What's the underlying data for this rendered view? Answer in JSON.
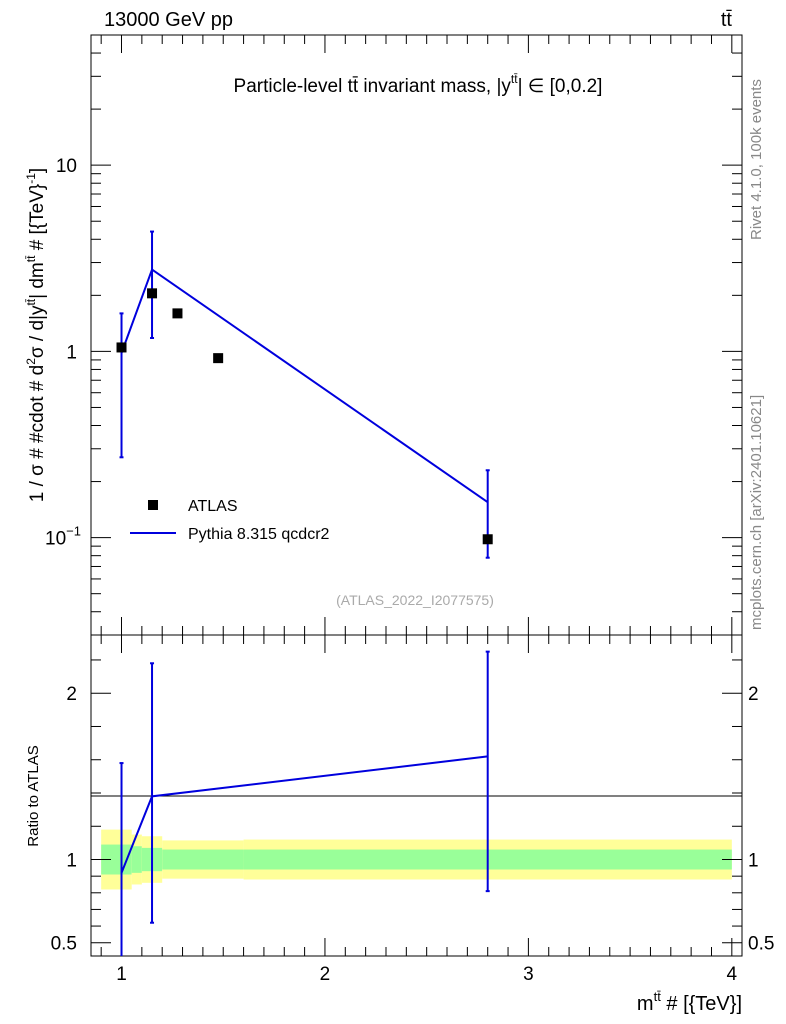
{
  "header": {
    "left": "13000 GeV pp",
    "right": "tt̄"
  },
  "side_labels": {
    "rivet": "Rivet 4.1.0,  100k events",
    "mcplots": "mcplots.cern.ch [arXiv:2401.10621]"
  },
  "chart_data": [
    {
      "type": "scatter",
      "panel": "main",
      "title": "Particle-level tt̄ invariant mass, |ytt̄| ∈ [0,0.2]",
      "title_parts": {
        "prefix": "Particle-level ",
        "tt": "tt̄",
        "middle": " invariant mass, |y",
        "sup": "tt̄",
        "suffix": "| ∈ [0,0.2]"
      },
      "watermark": "(ATLAS_2022_I2077575)",
      "ylabel": "1 / σ # #cdot # d²σ / d|y^{tt̄}| dm^{tt̄} # [{TeV}⁻¹]",
      "ylabel_parts": {
        "a": "1 / σ # #cdot # d",
        "a_sup": "2",
        "b": "σ / d|y",
        "b_sup": "tt̄",
        "c": "| dm",
        "c_sup": "tt̄",
        "d": " # [{TeV}",
        "d_sup": "-1",
        "e": "]"
      },
      "yscale": "log",
      "ylim": [
        0.03,
        50
      ],
      "xlim": [
        0.85,
        4.05
      ],
      "yticks": [
        {
          "value": 0.1,
          "label": "10",
          "sup": "−1"
        },
        {
          "value": 1,
          "label": "1",
          "sup": ""
        },
        {
          "value": 10,
          "label": "10",
          "sup": ""
        }
      ],
      "legend": {
        "placement": "bottom-left",
        "entries": [
          {
            "label": "ATLAS",
            "style": "marker",
            "color": "#000000"
          },
          {
            "label": "Pythia 8.315 qcdcr2",
            "style": "line",
            "color": "#0000dd"
          }
        ]
      },
      "series": [
        {
          "name": "ATLAS",
          "color": "#000000",
          "x": [
            1.0,
            1.15,
            1.275,
            1.475,
            2.8
          ],
          "y": [
            1.05,
            2.05,
            1.6,
            0.92,
            0.098
          ]
        },
        {
          "name": "Pythia 8.315 qcdcr2",
          "color": "#0000dd",
          "x": [
            1.0,
            1.15,
            2.8
          ],
          "y": [
            0.98,
            2.75,
            0.155
          ],
          "err_low": [
            0.27,
            1.18,
            0.078
          ],
          "err_high": [
            1.6,
            4.4,
            0.23
          ]
        }
      ]
    },
    {
      "type": "line",
      "panel": "ratio",
      "ylabel": "Ratio to ATLAS",
      "ylim": [
        0.42,
        2.35
      ],
      "xlim": [
        0.85,
        4.05
      ],
      "yticks": [
        {
          "value": 0.5,
          "label": "0.5"
        },
        {
          "value": 1,
          "label": "1"
        },
        {
          "value": 2,
          "label": "2"
        }
      ],
      "xticks": [
        {
          "value": 1,
          "label": "1"
        },
        {
          "value": 2,
          "label": "2"
        },
        {
          "value": 3,
          "label": "3"
        },
        {
          "value": 4,
          "label": "4"
        }
      ],
      "xlabel_parts": {
        "a": "m",
        "sup": "tt̄",
        "b": " # [{TeV}]"
      },
      "bands": {
        "yellow_color": "#ffff99",
        "green_color": "#99ff99",
        "bins": [
          {
            "x0": 0.9,
            "x1": 1.05,
            "y_lo": 0.82,
            "y_hi": 1.18,
            "g_lo": 0.91,
            "g_hi": 1.09
          },
          {
            "x0": 1.05,
            "x1": 1.1,
            "y_lo": 0.85,
            "y_hi": 1.15,
            "g_lo": 0.92,
            "g_hi": 1.08
          },
          {
            "x0": 1.1,
            "x1": 1.2,
            "y_lo": 0.86,
            "y_hi": 1.14,
            "g_lo": 0.93,
            "g_hi": 1.07
          },
          {
            "x0": 1.2,
            "x1": 1.6,
            "y_lo": 0.885,
            "y_hi": 1.115,
            "g_lo": 0.94,
            "g_hi": 1.06
          },
          {
            "x0": 1.6,
            "x1": 4.0,
            "y_lo": 0.88,
            "y_hi": 1.12,
            "g_lo": 0.94,
            "g_hi": 1.06
          }
        ]
      },
      "series": [
        {
          "name": "Pythia 8.315 qcdcr2 / ATLAS",
          "color": "#0000dd",
          "x": [
            1.0,
            1.15,
            2.8
          ],
          "y": [
            0.92,
            1.38,
            1.62
          ],
          "err_low": [
            0.38,
            0.62,
            0.81
          ],
          "err_high": [
            1.58,
            2.18,
            2.25
          ]
        }
      ]
    }
  ]
}
